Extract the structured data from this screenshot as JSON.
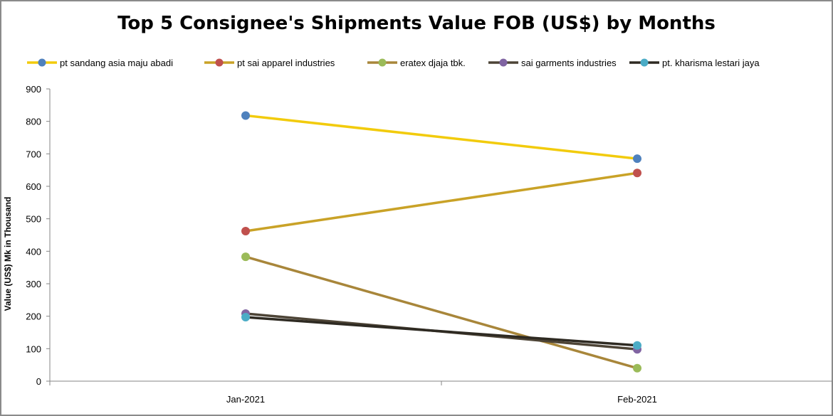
{
  "chart_data": {
    "type": "line",
    "title": "Top 5 Consignee's Shipments Value FOB (US$) by Months",
    "xlabel": "",
    "ylabel": "Value (US$) Mk in Thousand",
    "ylim": [
      0,
      900
    ],
    "yticks": [
      0,
      100,
      200,
      300,
      400,
      500,
      600,
      700,
      800,
      900
    ],
    "x": [
      "Jan-2021",
      "Feb-2021"
    ],
    "grid": false,
    "legend": "top",
    "series": [
      {
        "name": "pt sandang asia maju abadi",
        "values": [
          818,
          685
        ],
        "line_color": "#f2cb0c",
        "marker_color": "#4f81bd"
      },
      {
        "name": "pt sai apparel industries",
        "values": [
          462,
          641
        ],
        "line_color": "#c9a227",
        "marker_color": "#c0504d"
      },
      {
        "name": "eratex djaja tbk.",
        "values": [
          383,
          40
        ],
        "line_color": "#a8863a",
        "marker_color": "#9bbb59"
      },
      {
        "name": "sai garments industries",
        "values": [
          208,
          98
        ],
        "line_color": "#4d4436",
        "marker_color": "#8064a2"
      },
      {
        "name": "pt. kharisma lestari jaya",
        "values": [
          197,
          110
        ],
        "line_color": "#2e2a22",
        "marker_color": "#4bacc6"
      }
    ]
  }
}
